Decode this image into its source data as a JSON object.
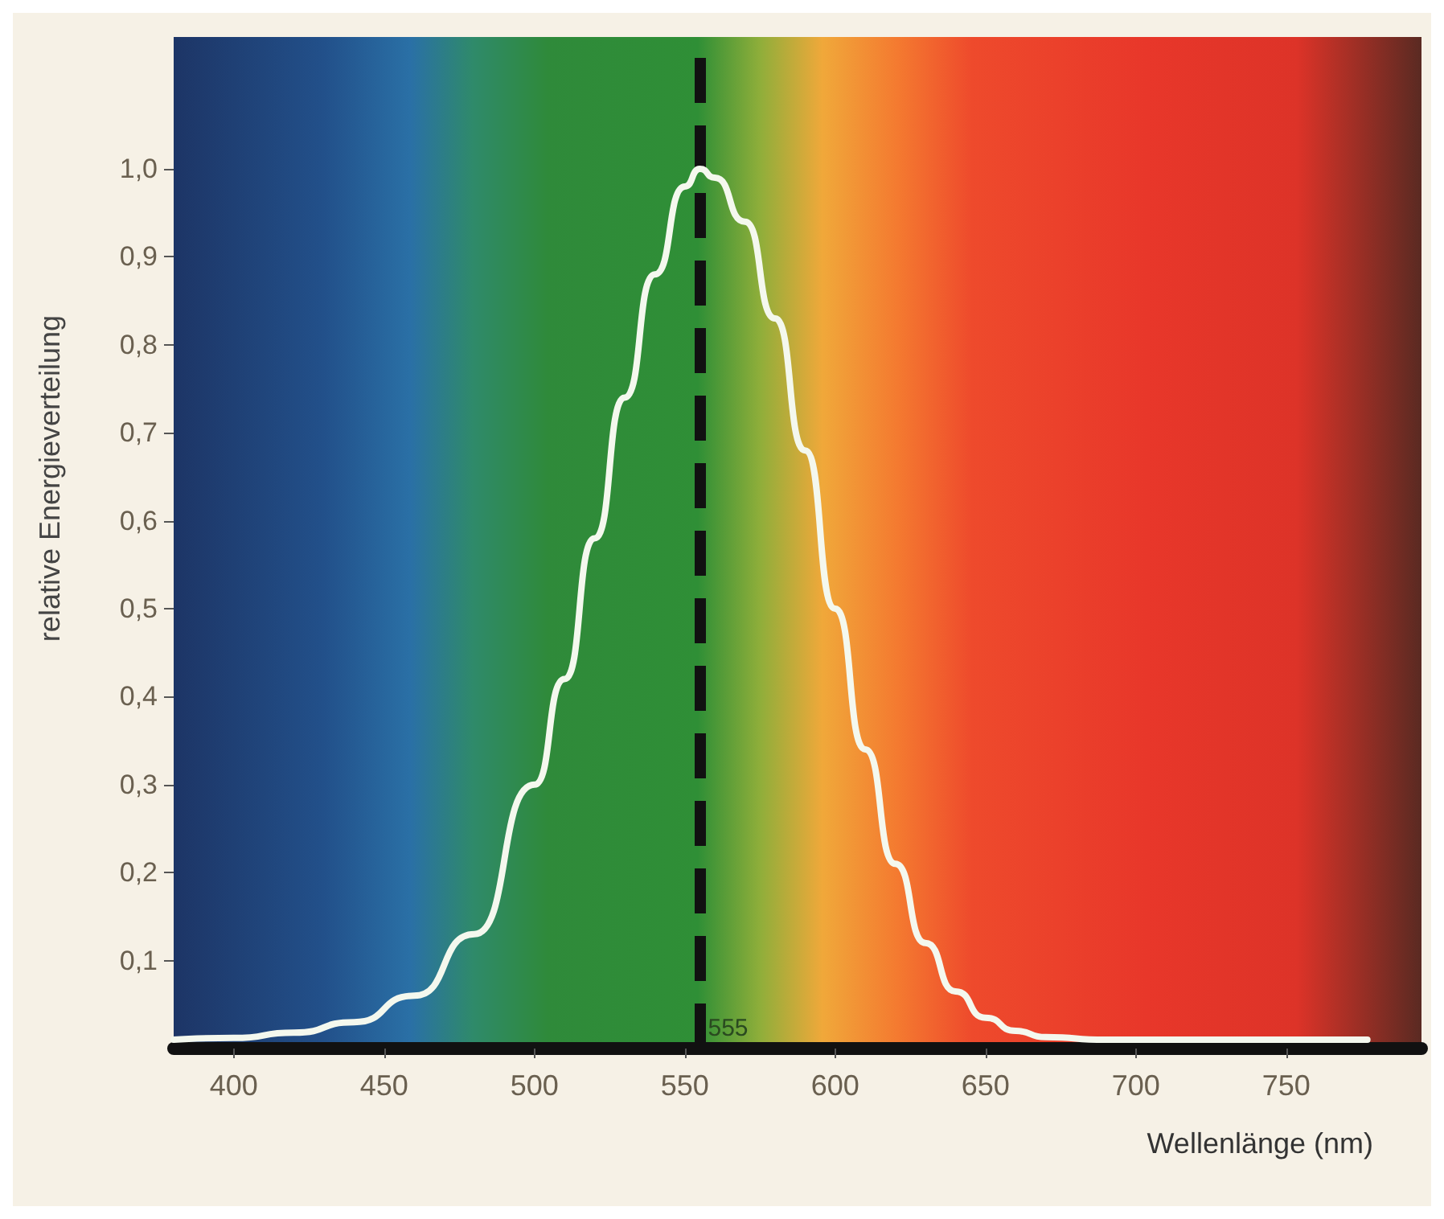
{
  "chart_data": {
    "type": "line",
    "xlabel": "Wellenlänge (nm)",
    "ylabel": "relative Energieverteilung",
    "x": [
      380,
      400,
      420,
      440,
      460,
      480,
      500,
      510,
      520,
      530,
      540,
      550,
      555,
      560,
      570,
      580,
      590,
      600,
      610,
      620,
      630,
      640,
      650,
      660,
      670,
      690,
      720,
      750,
      777
    ],
    "series": [
      {
        "color": "#f4f8ee",
        "values": [
          0.01,
          0.012,
          0.018,
          0.03,
          0.06,
          0.13,
          0.3,
          0.42,
          0.58,
          0.74,
          0.88,
          0.98,
          1.0,
          0.99,
          0.94,
          0.83,
          0.68,
          0.5,
          0.34,
          0.21,
          0.12,
          0.065,
          0.035,
          0.02,
          0.013,
          0.01,
          0.01,
          0.01,
          0.01
        ]
      }
    ],
    "xlim": [
      380,
      795
    ],
    "ylim": [
      0,
      1.15
    ],
    "xticks": [
      400,
      450,
      500,
      550,
      600,
      650,
      700,
      750
    ],
    "yticks": [
      {
        "value": 0.1,
        "label": "0,1"
      },
      {
        "value": 0.2,
        "label": "0,2"
      },
      {
        "value": 0.3,
        "label": "0,3"
      },
      {
        "value": 0.4,
        "label": "0,4"
      },
      {
        "value": 0.5,
        "label": "0,5"
      },
      {
        "value": 0.6,
        "label": "0,6"
      },
      {
        "value": 0.7,
        "label": "0,7"
      },
      {
        "value": 0.8,
        "label": "0,8"
      },
      {
        "value": 0.9,
        "label": "0,9"
      },
      {
        "value": 1.0,
        "label": "1,0"
      }
    ],
    "ref_lines": [
      {
        "axis": "x",
        "value": 555,
        "label": "555",
        "color": "#111111",
        "line_style": "dashed"
      }
    ],
    "grid": false,
    "marker": "none",
    "line_style": "solid"
  }
}
